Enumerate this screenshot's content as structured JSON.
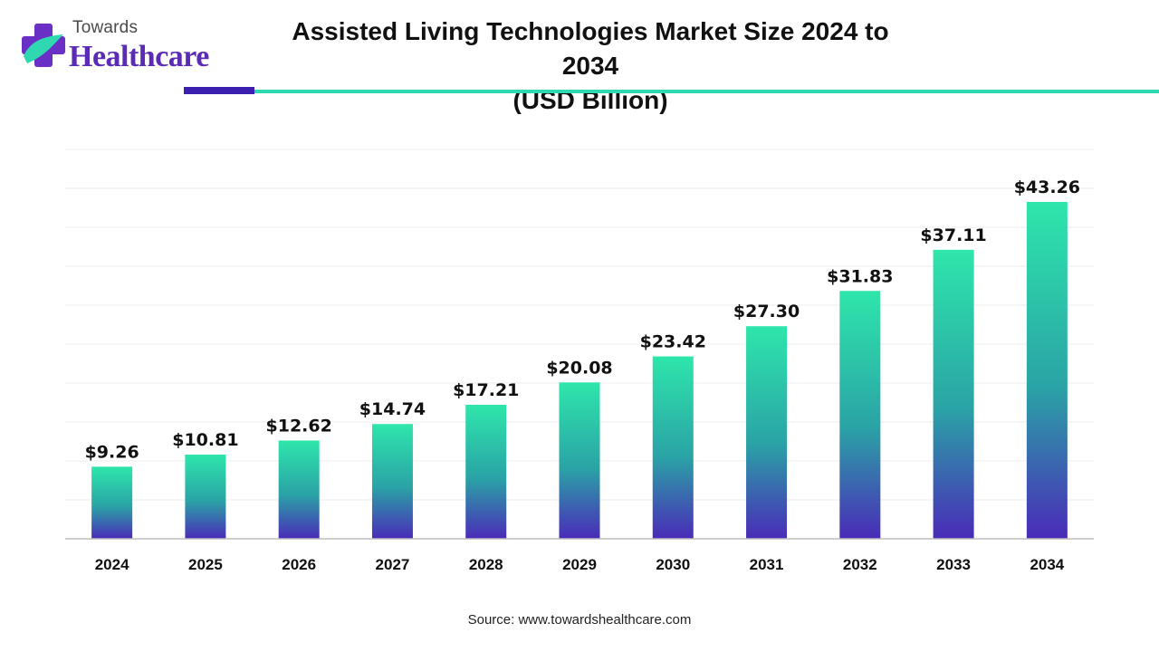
{
  "brand": {
    "name_top": "Towards",
    "name_bottom": "Healthcare"
  },
  "header": {
    "title_line1": "Assisted Living Technologies Market Size 2024 to 2034",
    "title_line2": "(USD Billion)"
  },
  "source": "Source: www.towardshealthcare.com",
  "colors": {
    "bar_top": "#2ee6ab",
    "bar_mid": "#2aa3a6",
    "bar_bottom": "#4a2bb8",
    "rule_dark": "#3a1fb0",
    "rule_teal": "#2fd8b0"
  },
  "chart_data": {
    "type": "bar",
    "title": "Assisted Living Technologies Market Size 2024 to 2034",
    "subtitle": "(USD Billion)",
    "categories": [
      "2024",
      "2025",
      "2026",
      "2027",
      "2028",
      "2029",
      "2030",
      "2031",
      "2032",
      "2033",
      "2034"
    ],
    "values": [
      9.26,
      10.81,
      12.62,
      14.74,
      17.21,
      20.08,
      23.42,
      27.3,
      31.83,
      37.11,
      43.26
    ],
    "labels": [
      "$9.26",
      "$10.81",
      "$12.62",
      "$14.74",
      "$17.21",
      "$20.08",
      "$23.42",
      "$27.30",
      "$31.83",
      "$37.11",
      "$43.26"
    ],
    "xlabel": "",
    "ylabel": "",
    "ylim": [
      0,
      50
    ],
    "grid": true,
    "legend": "none"
  }
}
